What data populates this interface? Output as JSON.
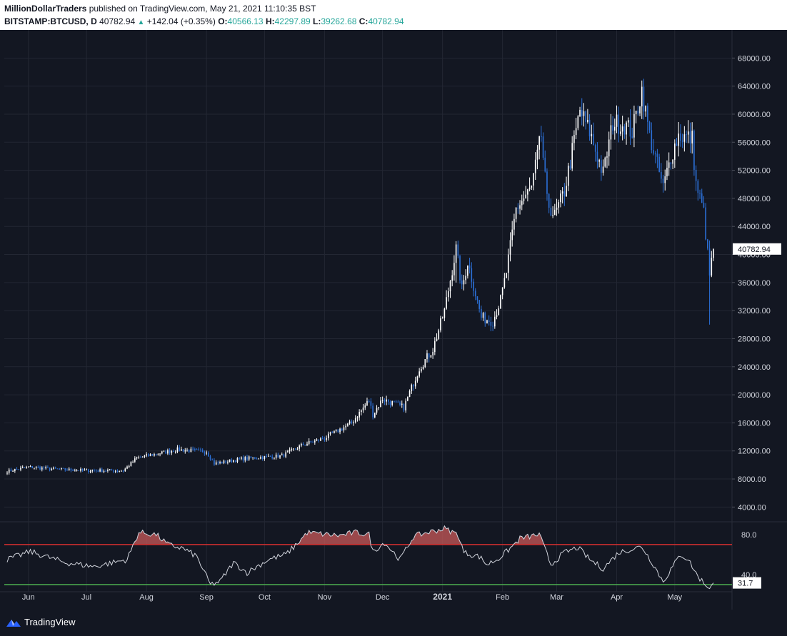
{
  "header": {
    "publisher": "MillionDollarTraders",
    "published_text": "published on TradingView.com, May 21, 2021 11:10:35 BST",
    "symbol": "BITSTAMP:BTCUSD, D",
    "last": "40782.94",
    "change": "+142.04 (+0.35%)",
    "open_label": "O:",
    "open": "40566.13",
    "high_label": "H:",
    "high": "42297.89",
    "low_label": "L:",
    "low": "39262.68",
    "close_label": "C:",
    "close": "40782.94"
  },
  "footer": {
    "brand": "TradingView"
  },
  "colors": {
    "background": "#131722",
    "grid": "#232733",
    "candle_up": "#ffffff",
    "candle_down": "#2b6fd6",
    "rsi_line": "#d1d4dc",
    "overbought": "#d32f2f",
    "oversold": "#4caf50",
    "ob_fill": "#c95a5a"
  },
  "chart_data": [
    {
      "type": "candlestick",
      "title": "BITSTAMP:BTCUSD, D",
      "ylim": [
        2000,
        72000
      ],
      "y_ticks": [
        "68000.00",
        "64000.00",
        "60000.00",
        "56000.00",
        "52000.00",
        "48000.00",
        "44000.00",
        "40000.00",
        "36000.00",
        "32000.00",
        "28000.00",
        "24000.00",
        "20000.00",
        "16000.00",
        "12000.00",
        "8000.00",
        "4000.00"
      ],
      "x_ticks": [
        "Jun",
        "Jul",
        "Aug",
        "Sep",
        "Oct",
        "Nov",
        "Dec",
        "2021",
        "Feb",
        "Mar",
        "Apr",
        "May"
      ],
      "last_price_label": "40782.94",
      "anchors": [
        [
          "2020-05-21",
          9100
        ],
        [
          "2020-06-01",
          9700
        ],
        [
          "2020-06-15",
          9400
        ],
        [
          "2020-07-01",
          9200
        ],
        [
          "2020-07-20",
          9200
        ],
        [
          "2020-07-27",
          11000
        ],
        [
          "2020-08-10",
          11800
        ],
        [
          "2020-08-17",
          12200
        ],
        [
          "2020-09-01",
          11900
        ],
        [
          "2020-09-05",
          10200
        ],
        [
          "2020-09-20",
          10900
        ],
        [
          "2020-10-10",
          11300
        ],
        [
          "2020-10-21",
          12900
        ],
        [
          "2020-11-01",
          13800
        ],
        [
          "2020-11-15",
          16000
        ],
        [
          "2020-11-24",
          19200
        ],
        [
          "2020-11-26",
          17200
        ],
        [
          "2020-12-01",
          19400
        ],
        [
          "2020-12-12",
          18200
        ],
        [
          "2020-12-16",
          21000
        ],
        [
          "2020-12-20",
          23800
        ],
        [
          "2020-12-27",
          26500
        ],
        [
          "2021-01-02",
          32000
        ],
        [
          "2021-01-08",
          40800
        ],
        [
          "2021-01-11",
          35000
        ],
        [
          "2021-01-14",
          39000
        ],
        [
          "2021-01-21",
          31000
        ],
        [
          "2021-01-27",
          30500
        ],
        [
          "2021-01-31",
          33500
        ],
        [
          "2021-02-03",
          37500
        ],
        [
          "2021-02-08",
          46500
        ],
        [
          "2021-02-16",
          49500
        ],
        [
          "2021-02-21",
          57000
        ],
        [
          "2021-02-24",
          47500
        ],
        [
          "2021-02-28",
          45500
        ],
        [
          "2021-03-05",
          49000
        ],
        [
          "2021-03-13",
          60500
        ],
        [
          "2021-03-18",
          57500
        ],
        [
          "2021-03-25",
          51500
        ],
        [
          "2021-03-30",
          58800
        ],
        [
          "2021-04-05",
          58500
        ],
        [
          "2021-04-09",
          57500
        ],
        [
          "2021-04-14",
          63500
        ],
        [
          "2021-04-18",
          57000
        ],
        [
          "2021-04-25",
          49500
        ],
        [
          "2021-04-29",
          54000
        ],
        [
          "2021-05-03",
          57000
        ],
        [
          "2021-05-10",
          56500
        ],
        [
          "2021-05-12",
          50000
        ],
        [
          "2021-05-16",
          46000
        ],
        [
          "2021-05-19",
          37000
        ],
        [
          "2021-05-21",
          40783
        ]
      ],
      "spikes": [
        {
          "date": "2021-05-19",
          "low": 30000,
          "high": 42000
        },
        {
          "date": "2021-04-14",
          "low": 62000,
          "high": 64800
        },
        {
          "date": "2021-01-08",
          "low": 36000,
          "high": 41900
        }
      ]
    },
    {
      "type": "line",
      "title": "RSI",
      "ylim": [
        25,
        92
      ],
      "y_ticks": [
        "80.0",
        "40.0"
      ],
      "overbought": 70,
      "oversold": 30,
      "last_value_label": "31.7",
      "anchors": [
        [
          "2020-05-21",
          55
        ],
        [
          "2020-06-02",
          63
        ],
        [
          "2020-06-20",
          52
        ],
        [
          "2020-07-05",
          48
        ],
        [
          "2020-07-22",
          55
        ],
        [
          "2020-07-28",
          82
        ],
        [
          "2020-08-06",
          80
        ],
        [
          "2020-08-12",
          70
        ],
        [
          "2020-08-20",
          66
        ],
        [
          "2020-08-27",
          58
        ],
        [
          "2020-09-03",
          30
        ],
        [
          "2020-09-08",
          33
        ],
        [
          "2020-09-15",
          52
        ],
        [
          "2020-09-22",
          42
        ],
        [
          "2020-10-03",
          55
        ],
        [
          "2020-10-12",
          60
        ],
        [
          "2020-10-18",
          71
        ],
        [
          "2020-10-23",
          82
        ],
        [
          "2020-11-02",
          80
        ],
        [
          "2020-11-09",
          79
        ],
        [
          "2020-11-17",
          82
        ],
        [
          "2020-11-24",
          80
        ],
        [
          "2020-11-26",
          63
        ],
        [
          "2020-12-02",
          72
        ],
        [
          "2020-12-10",
          55
        ],
        [
          "2020-12-17",
          78
        ],
        [
          "2020-12-24",
          82
        ],
        [
          "2021-01-02",
          86
        ],
        [
          "2021-01-09",
          80
        ],
        [
          "2021-01-12",
          62
        ],
        [
          "2021-01-20",
          58
        ],
        [
          "2021-01-24",
          50
        ],
        [
          "2021-01-30",
          56
        ],
        [
          "2021-02-06",
          68
        ],
        [
          "2021-02-10",
          76
        ],
        [
          "2021-02-20",
          80
        ],
        [
          "2021-02-26",
          50
        ],
        [
          "2021-03-05",
          62
        ],
        [
          "2021-03-12",
          67
        ],
        [
          "2021-03-18",
          55
        ],
        [
          "2021-03-25",
          46
        ],
        [
          "2021-04-02",
          62
        ],
        [
          "2021-04-14",
          68
        ],
        [
          "2021-04-20",
          50
        ],
        [
          "2021-04-25",
          33
        ],
        [
          "2021-04-30",
          48
        ],
        [
          "2021-05-04",
          60
        ],
        [
          "2021-05-08",
          55
        ],
        [
          "2021-05-13",
          38
        ],
        [
          "2021-05-17",
          30
        ],
        [
          "2021-05-19",
          26
        ],
        [
          "2021-05-21",
          31.7
        ]
      ]
    }
  ]
}
